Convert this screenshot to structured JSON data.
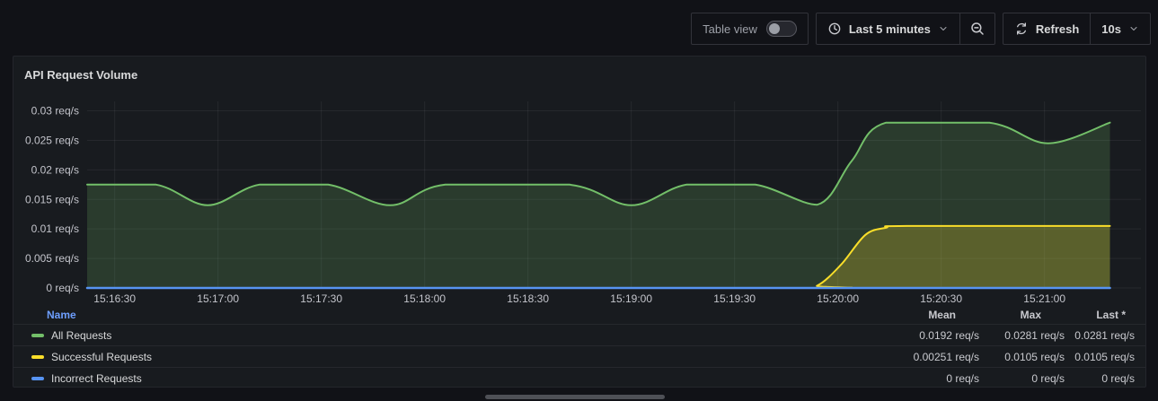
{
  "toolbar": {
    "table_view_label": "Table view",
    "table_view_on": false,
    "time_range_label": "Last 5 minutes",
    "refresh_label": "Refresh",
    "refresh_interval": "10s",
    "icons": [
      "clock-icon",
      "chevron-down-icon",
      "magnifier-minus-icon",
      "sync-arrows-icon"
    ]
  },
  "panel": {
    "title": "API Request Volume"
  },
  "legend": {
    "headers": {
      "name": "Name",
      "mean": "Mean",
      "max": "Max",
      "last": "Last *"
    }
  },
  "colors": {
    "green": "#73BF69",
    "yellow": "#FADE2A",
    "blue": "#5794F2",
    "link_blue": "#6E9FFF",
    "page_bg": "#111217",
    "panel_bg": "#181B1F"
  },
  "chart_data": {
    "type": "area",
    "title": "API Request Volume",
    "unit": "req/s",
    "grid": true,
    "legend_position": "bottom-table",
    "x_domain": [
      0,
      306
    ],
    "y_domain": [
      0,
      0.0316
    ],
    "x_ticks": [
      {
        "t": 8,
        "label": "15:16:30"
      },
      {
        "t": 38,
        "label": "15:17:00"
      },
      {
        "t": 68,
        "label": "15:17:30"
      },
      {
        "t": 98,
        "label": "15:18:00"
      },
      {
        "t": 128,
        "label": "15:18:30"
      },
      {
        "t": 158,
        "label": "15:19:00"
      },
      {
        "t": 188,
        "label": "15:19:30"
      },
      {
        "t": 218,
        "label": "15:20:00"
      },
      {
        "t": 248,
        "label": "15:20:30"
      },
      {
        "t": 278,
        "label": "15:21:00"
      }
    ],
    "y_ticks": [
      {
        "value": 0,
        "label": "0 req/s"
      },
      {
        "value": 0.005,
        "label": "0.005 req/s"
      },
      {
        "value": 0.01,
        "label": "0.01 req/s"
      },
      {
        "value": 0.015,
        "label": "0.015 req/s"
      },
      {
        "value": 0.02,
        "label": "0.02 req/s"
      },
      {
        "value": 0.025,
        "label": "0.025 req/s"
      },
      {
        "value": 0.03,
        "label": "0.03 req/s"
      }
    ],
    "series": [
      {
        "name": "All Requests",
        "slug": "all-requests",
        "color": "#73BF69",
        "fill_opacity": 0.2,
        "line_width": 2,
        "mean": "0.0192 req/s",
        "max": "0.0281 req/s",
        "last": "0.0281 req/s",
        "points": [
          [
            0,
            0.0175
          ],
          [
            20,
            0.0175
          ],
          [
            35,
            0.014
          ],
          [
            50,
            0.0175
          ],
          [
            70,
            0.0175
          ],
          [
            88,
            0.014
          ],
          [
            104,
            0.0175
          ],
          [
            140,
            0.0175
          ],
          [
            158,
            0.014
          ],
          [
            174,
            0.0175
          ],
          [
            194,
            0.0175
          ],
          [
            212,
            0.0141
          ],
          [
            222,
            0.0215
          ],
          [
            232,
            0.028
          ],
          [
            262,
            0.028
          ],
          [
            279,
            0.0245
          ],
          [
            297,
            0.028
          ]
        ]
      },
      {
        "name": "Successful Requests",
        "slug": "successful-requests",
        "color": "#FADE2A",
        "fill_opacity": 0.23,
        "line_width": 2,
        "mean": "0.00251 req/s",
        "max": "0.0105 req/s",
        "last": "0.0105 req/s",
        "points": [
          [
            0,
            0
          ],
          [
            205,
            0
          ],
          [
            212,
            0.0004
          ],
          [
            219,
            0.004
          ],
          [
            226,
            0.009
          ],
          [
            232,
            0.0102
          ],
          [
            238,
            0.0105
          ],
          [
            297,
            0.0105
          ]
        ]
      },
      {
        "name": "Incorrect Requests",
        "slug": "incorrect-requests",
        "color": "#5794F2",
        "fill_opacity": 0,
        "line_width": 2.5,
        "mean": "0 req/s",
        "max": "0 req/s",
        "last": "0 req/s",
        "points": [
          [
            0,
            0
          ],
          [
            297,
            0
          ]
        ]
      }
    ]
  }
}
